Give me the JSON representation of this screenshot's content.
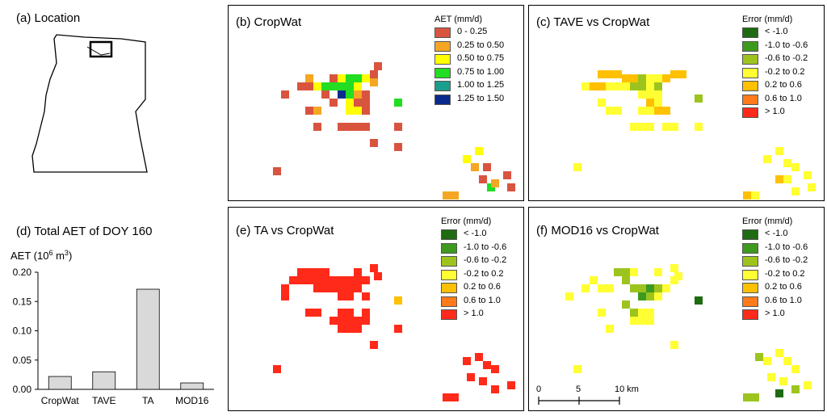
{
  "panels": {
    "a": {
      "title": "(a) Location"
    },
    "b": {
      "title": "(b) CropWat"
    },
    "c": {
      "title": "(c) TAVE vs CropWat"
    },
    "d": {
      "title": "(d) Total AET of DOY 160"
    },
    "e": {
      "title": "(e) TA vs CropWat"
    },
    "f": {
      "title": "(f) MOD16 vs CropWat"
    }
  },
  "legends": {
    "aet": {
      "title": "AET (mm/d)",
      "items": [
        {
          "label": "0 - 0.25",
          "color": "#d9543f"
        },
        {
          "label": "0.25 to 0.50",
          "color": "#f5a623"
        },
        {
          "label": "0.50 to 0.75",
          "color": "#ffff00"
        },
        {
          "label": "0.75 to 1.00",
          "color": "#22dd22"
        },
        {
          "label": "1.00 to 1.25",
          "color": "#1a9e8e"
        },
        {
          "label": "1.25 to 1.50",
          "color": "#0a2a8c"
        }
      ]
    },
    "error": {
      "title": "Error (mm/d)",
      "items": [
        {
          "label": "< -1.0",
          "color": "#1e6b12"
        },
        {
          "label": "-1.0 to -0.6",
          "color": "#3d9a1e"
        },
        {
          "label": "-0.6 to -0.2",
          "color": "#9dc41e"
        },
        {
          "label": "-0.2 to 0.2",
          "color": "#ffff33"
        },
        {
          "label": "0.2 to 0.6",
          "color": "#ffc000"
        },
        {
          "label": "0.6 to 1.0",
          "color": "#ff7a1a"
        },
        {
          "label": "> 1.0",
          "color": "#ff2a1a"
        }
      ]
    }
  },
  "scalebar": {
    "labels": [
      "0",
      "5",
      "10 km"
    ]
  },
  "maps": {
    "b": [
      [
        100,
        70,
        0
      ],
      [
        110,
        70,
        2
      ],
      [
        120,
        70,
        3
      ],
      [
        130,
        70,
        3
      ],
      [
        140,
        70,
        2
      ],
      [
        150,
        75,
        1
      ],
      [
        155,
        55,
        0
      ],
      [
        60,
        80,
        0
      ],
      [
        70,
        70,
        1
      ],
      [
        70,
        80,
        0
      ],
      [
        80,
        80,
        2
      ],
      [
        90,
        80,
        3
      ],
      [
        100,
        80,
        3
      ],
      [
        110,
        80,
        3
      ],
      [
        120,
        80,
        3
      ],
      [
        130,
        80,
        2
      ],
      [
        40,
        90,
        0
      ],
      [
        90,
        90,
        0
      ],
      [
        110,
        90,
        5
      ],
      [
        120,
        90,
        3
      ],
      [
        130,
        90,
        1
      ],
      [
        140,
        90,
        0
      ],
      [
        150,
        65,
        0
      ],
      [
        100,
        100,
        0
      ],
      [
        120,
        100,
        2
      ],
      [
        130,
        100,
        0
      ],
      [
        140,
        100,
        0
      ],
      [
        180,
        100,
        3
      ],
      [
        70,
        110,
        0
      ],
      [
        80,
        110,
        1
      ],
      [
        120,
        110,
        2
      ],
      [
        130,
        110,
        2
      ],
      [
        140,
        110,
        0
      ],
      [
        180,
        130,
        0
      ],
      [
        80,
        130,
        0
      ],
      [
        110,
        130,
        0
      ],
      [
        120,
        130,
        0
      ],
      [
        130,
        130,
        0
      ],
      [
        140,
        130,
        0
      ],
      [
        150,
        150,
        0
      ],
      [
        180,
        155,
        0
      ],
      [
        30,
        185,
        0
      ],
      [
        265,
        170,
        2
      ],
      [
        280,
        160,
        2
      ],
      [
        275,
        180,
        1
      ],
      [
        290,
        180,
        0
      ],
      [
        285,
        195,
        0
      ],
      [
        295,
        205,
        3
      ],
      [
        300,
        200,
        1
      ],
      [
        315,
        190,
        0
      ],
      [
        320,
        205,
        0
      ],
      [
        240,
        215,
        1
      ],
      [
        250,
        215,
        1
      ]
    ],
    "c": [
      [
        60,
        65,
        4
      ],
      [
        70,
        65,
        4
      ],
      [
        80,
        65,
        4
      ],
      [
        90,
        70,
        4
      ],
      [
        100,
        70,
        4
      ],
      [
        110,
        70,
        2
      ],
      [
        120,
        70,
        3
      ],
      [
        130,
        70,
        3
      ],
      [
        140,
        70,
        4
      ],
      [
        150,
        65,
        4
      ],
      [
        160,
        65,
        4
      ],
      [
        40,
        80,
        3
      ],
      [
        50,
        80,
        4
      ],
      [
        60,
        80,
        4
      ],
      [
        70,
        80,
        3
      ],
      [
        80,
        80,
        3
      ],
      [
        90,
        80,
        3
      ],
      [
        100,
        80,
        2
      ],
      [
        110,
        80,
        2
      ],
      [
        120,
        80,
        3
      ],
      [
        130,
        80,
        2
      ],
      [
        180,
        95,
        2
      ],
      [
        60,
        100,
        3
      ],
      [
        110,
        90,
        3
      ],
      [
        120,
        90,
        3
      ],
      [
        130,
        90,
        3
      ],
      [
        120,
        100,
        4
      ],
      [
        130,
        100,
        3
      ],
      [
        70,
        110,
        3
      ],
      [
        80,
        110,
        3
      ],
      [
        110,
        110,
        3
      ],
      [
        120,
        110,
        3
      ],
      [
        130,
        110,
        4
      ],
      [
        140,
        110,
        4
      ],
      [
        150,
        130,
        3
      ],
      [
        100,
        130,
        3
      ],
      [
        110,
        130,
        3
      ],
      [
        120,
        130,
        3
      ],
      [
        140,
        130,
        3
      ],
      [
        180,
        130,
        3
      ],
      [
        30,
        180,
        3
      ],
      [
        265,
        170,
        3
      ],
      [
        280,
        160,
        3
      ],
      [
        290,
        175,
        3
      ],
      [
        300,
        180,
        3
      ],
      [
        280,
        195,
        4
      ],
      [
        290,
        195,
        3
      ],
      [
        300,
        210,
        3
      ],
      [
        315,
        190,
        3
      ],
      [
        320,
        205,
        3
      ],
      [
        240,
        215,
        4
      ],
      [
        250,
        215,
        3
      ]
    ],
    "e": [
      [
        60,
        60,
        6
      ],
      [
        70,
        60,
        6
      ],
      [
        80,
        60,
        6
      ],
      [
        90,
        60,
        6
      ],
      [
        130,
        60,
        6
      ],
      [
        150,
        55,
        6
      ],
      [
        155,
        65,
        6
      ],
      [
        50,
        70,
        6
      ],
      [
        60,
        70,
        6
      ],
      [
        70,
        70,
        6
      ],
      [
        80,
        70,
        6
      ],
      [
        90,
        70,
        6
      ],
      [
        100,
        70,
        6
      ],
      [
        110,
        70,
        6
      ],
      [
        120,
        70,
        6
      ],
      [
        130,
        70,
        6
      ],
      [
        140,
        70,
        6
      ],
      [
        40,
        80,
        6
      ],
      [
        80,
        80,
        6
      ],
      [
        90,
        80,
        6
      ],
      [
        100,
        80,
        6
      ],
      [
        110,
        80,
        6
      ],
      [
        120,
        80,
        6
      ],
      [
        130,
        80,
        6
      ],
      [
        140,
        90,
        6
      ],
      [
        120,
        90,
        6
      ],
      [
        110,
        90,
        6
      ],
      [
        40,
        90,
        6
      ],
      [
        180,
        95,
        4
      ],
      [
        70,
        110,
        6
      ],
      [
        80,
        110,
        6
      ],
      [
        110,
        110,
        6
      ],
      [
        120,
        110,
        6
      ],
      [
        140,
        110,
        6
      ],
      [
        100,
        120,
        6
      ],
      [
        110,
        120,
        6
      ],
      [
        120,
        120,
        6
      ],
      [
        130,
        120,
        6
      ],
      [
        140,
        120,
        6
      ],
      [
        110,
        130,
        6
      ],
      [
        120,
        130,
        6
      ],
      [
        130,
        130,
        6
      ],
      [
        150,
        150,
        6
      ],
      [
        180,
        130,
        6
      ],
      [
        30,
        180,
        6
      ],
      [
        265,
        170,
        6
      ],
      [
        280,
        165,
        6
      ],
      [
        290,
        175,
        6
      ],
      [
        300,
        180,
        6
      ],
      [
        270,
        190,
        6
      ],
      [
        285,
        195,
        6
      ],
      [
        300,
        205,
        6
      ],
      [
        320,
        200,
        6
      ],
      [
        240,
        215,
        6
      ],
      [
        250,
        215,
        6
      ]
    ],
    "f": [
      [
        50,
        70,
        3
      ],
      [
        80,
        60,
        2
      ],
      [
        90,
        60,
        2
      ],
      [
        100,
        60,
        3
      ],
      [
        130,
        60,
        3
      ],
      [
        150,
        55,
        3
      ],
      [
        155,
        65,
        3
      ],
      [
        40,
        80,
        3
      ],
      [
        60,
        80,
        3
      ],
      [
        70,
        80,
        3
      ],
      [
        90,
        70,
        2
      ],
      [
        100,
        80,
        2
      ],
      [
        110,
        80,
        2
      ],
      [
        120,
        80,
        1
      ],
      [
        130,
        80,
        2
      ],
      [
        140,
        80,
        3
      ],
      [
        150,
        70,
        3
      ],
      [
        20,
        90,
        3
      ],
      [
        110,
        90,
        1
      ],
      [
        120,
        90,
        2
      ],
      [
        130,
        90,
        3
      ],
      [
        180,
        95,
        0
      ],
      [
        60,
        110,
        3
      ],
      [
        90,
        100,
        2
      ],
      [
        100,
        110,
        2
      ],
      [
        110,
        110,
        3
      ],
      [
        120,
        110,
        3
      ],
      [
        70,
        130,
        3
      ],
      [
        100,
        120,
        3
      ],
      [
        110,
        120,
        3
      ],
      [
        120,
        120,
        3
      ],
      [
        150,
        150,
        3
      ],
      [
        30,
        180,
        3
      ],
      [
        255,
        165,
        2
      ],
      [
        265,
        170,
        3
      ],
      [
        280,
        160,
        3
      ],
      [
        290,
        170,
        3
      ],
      [
        300,
        180,
        3
      ],
      [
        270,
        190,
        3
      ],
      [
        285,
        195,
        3
      ],
      [
        300,
        205,
        2
      ],
      [
        315,
        200,
        3
      ],
      [
        280,
        210,
        0
      ],
      [
        240,
        215,
        2
      ],
      [
        250,
        215,
        2
      ]
    ]
  },
  "chart_data": {
    "type": "bar",
    "title": "(d) Total AET of DOY 160",
    "ylabel": "AET (10⁶ m³)",
    "categories": [
      "CropWat",
      "TAVE",
      "TA",
      "MOD16"
    ],
    "values": [
      0.022,
      0.03,
      0.171,
      0.011
    ],
    "ylim": [
      0,
      0.2
    ],
    "yticks": [
      "0.00",
      "0.05",
      "0.10",
      "0.15",
      "0.20"
    ],
    "bar_color": "#d9d9d9"
  }
}
